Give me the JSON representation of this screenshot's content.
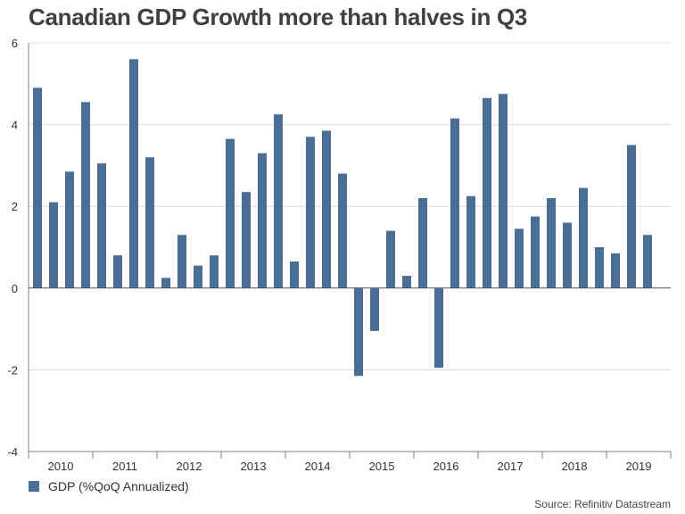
{
  "chart_data": {
    "type": "bar",
    "title": "Canadian GDP Growth more than halves in Q3",
    "xlabel": "",
    "ylabel": "",
    "ylim": [
      -4,
      6
    ],
    "yticks": [
      "6",
      "4",
      "2",
      "0",
      "-2",
      "-4"
    ],
    "year_labels": [
      "2010",
      "2011",
      "2012",
      "2013",
      "2014",
      "2015",
      "2016",
      "2017",
      "2018",
      "2019"
    ],
    "quarters_per_year": 4,
    "grid": true,
    "legend_position": "bottom-left",
    "bar_color": "#4a6f96",
    "series": [
      {
        "name": "GDP (%QoQ Annualized)",
        "values": [
          4.9,
          2.1,
          2.85,
          4.55,
          3.05,
          0.8,
          5.6,
          3.2,
          0.25,
          1.3,
          0.55,
          0.8,
          3.65,
          2.35,
          3.3,
          4.25,
          0.65,
          3.7,
          3.85,
          2.8,
          -2.15,
          -1.05,
          1.4,
          0.3,
          2.2,
          -1.95,
          4.15,
          2.25,
          4.65,
          4.75,
          1.45,
          1.75,
          2.2,
          1.6,
          2.45,
          1.0,
          0.85,
          3.5,
          1.3
        ]
      }
    ]
  },
  "legend": {
    "label": "GDP (%QoQ Annualized)"
  },
  "source": "Source: Refinitiv Datastream"
}
